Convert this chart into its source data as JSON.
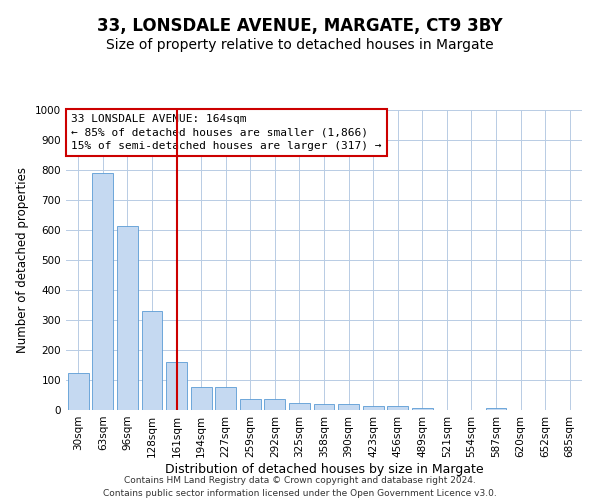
{
  "title1": "33, LONSDALE AVENUE, MARGATE, CT9 3BY",
  "title2": "Size of property relative to detached houses in Margate",
  "xlabel": "Distribution of detached houses by size in Margate",
  "ylabel": "Number of detached properties",
  "categories": [
    "30sqm",
    "63sqm",
    "96sqm",
    "128sqm",
    "161sqm",
    "194sqm",
    "227sqm",
    "259sqm",
    "292sqm",
    "325sqm",
    "358sqm",
    "390sqm",
    "423sqm",
    "456sqm",
    "489sqm",
    "521sqm",
    "554sqm",
    "587sqm",
    "620sqm",
    "652sqm",
    "685sqm"
  ],
  "values": [
    125,
    790,
    615,
    330,
    160,
    77,
    77,
    38,
    37,
    22,
    20,
    20,
    15,
    13,
    8,
    0,
    0,
    8,
    0,
    0,
    0
  ],
  "bar_color": "#c5d9f1",
  "bar_edge_color": "#5b9bd5",
  "red_line_index": 4,
  "annotation_text": "33 LONSDALE AVENUE: 164sqm\n← 85% of detached houses are smaller (1,866)\n15% of semi-detached houses are larger (317) →",
  "annotation_box_color": "#ffffff",
  "annotation_box_edge_color": "#cc0000",
  "ylim": [
    0,
    1000
  ],
  "yticks": [
    0,
    100,
    200,
    300,
    400,
    500,
    600,
    700,
    800,
    900,
    1000
  ],
  "footer1": "Contains HM Land Registry data © Crown copyright and database right 2024.",
  "footer2": "Contains public sector information licensed under the Open Government Licence v3.0.",
  "background_color": "#ffffff",
  "grid_color": "#b8cce4",
  "title1_fontsize": 12,
  "title2_fontsize": 10,
  "xlabel_fontsize": 9,
  "ylabel_fontsize": 8.5,
  "tick_fontsize": 7.5,
  "annotation_fontsize": 8,
  "footer_fontsize": 6.5
}
